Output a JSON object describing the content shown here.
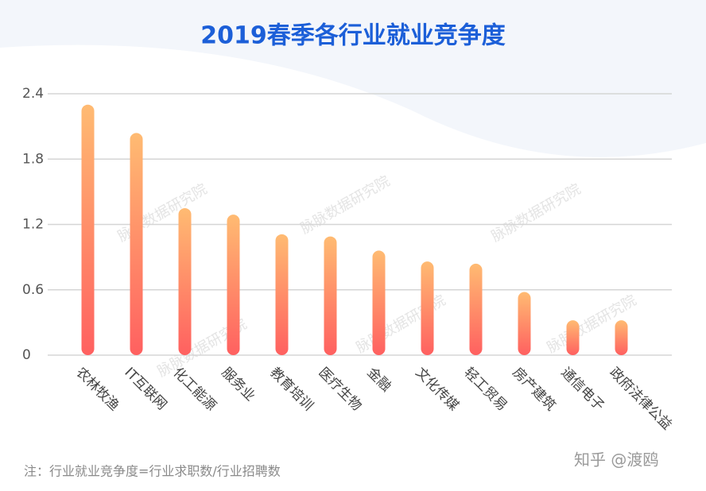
{
  "chart_data": {
    "type": "bar",
    "title": "2019春季各行业就业竞争度",
    "categories": [
      "农林牧渔",
      "IT互联网",
      "化工能源",
      "服务业",
      "教育培训",
      "医疗生物",
      "金融",
      "文化传媒",
      "轻工贸易",
      "房产建筑",
      "通信电子",
      "政府法律公益"
    ],
    "values": [
      2.3,
      2.04,
      1.35,
      1.29,
      1.11,
      1.09,
      0.96,
      0.86,
      0.84,
      0.58,
      0.32,
      0.32
    ],
    "color": "#ff6b5e",
    "ylim": [
      0,
      2.4
    ],
    "yticks": [
      0,
      0.6,
      1.2,
      1.8,
      2.4
    ],
    "grid": true,
    "note": "注：行业就业竞争度=行业求职数/行业招聘数",
    "watermark": "脉脉数据研究院",
    "source_mark": "知乎 @渡鸥"
  }
}
